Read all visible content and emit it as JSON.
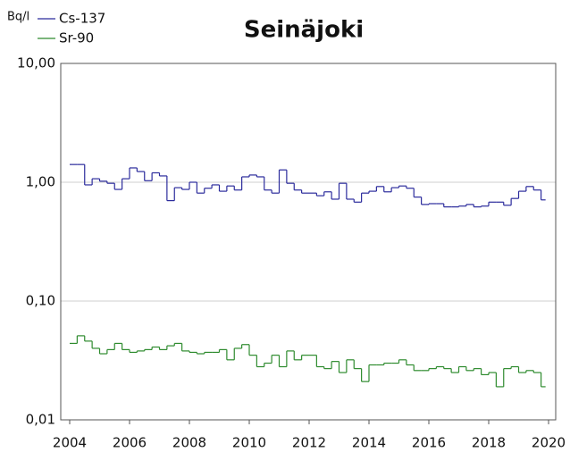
{
  "chart_data": {
    "type": "step",
    "title": "Seinäjoki",
    "y_label": "Bq/l",
    "log_y": true,
    "grid": true,
    "legend": "top-left",
    "xlim": [
      2004,
      2020
    ],
    "xticks": [
      2004,
      2006,
      2008,
      2010,
      2012,
      2014,
      2016,
      2018,
      2020
    ],
    "ylim": [
      0.01,
      10
    ],
    "yticks": [
      {
        "value": 0.01,
        "label": "0,01"
      },
      {
        "value": 0.1,
        "label": "0,10"
      },
      {
        "value": 1,
        "label": "1,00"
      },
      {
        "value": 10,
        "label": "10,00"
      }
    ],
    "x": [
      2004,
      2004.25,
      2004.5,
      2004.75,
      2005,
      2005.25,
      2005.5,
      2005.75,
      2006,
      2006.25,
      2006.5,
      2006.75,
      2007,
      2007.25,
      2007.5,
      2007.75,
      2008,
      2008.25,
      2008.5,
      2008.75,
      2009,
      2009.25,
      2009.5,
      2009.75,
      2010,
      2010.25,
      2010.5,
      2010.75,
      2011,
      2011.25,
      2011.5,
      2011.75,
      2012,
      2012.25,
      2012.5,
      2012.75,
      2013,
      2013.25,
      2013.5,
      2013.75,
      2014,
      2014.25,
      2014.5,
      2014.75,
      2015,
      2015.25,
      2015.5,
      2015.75,
      2016,
      2016.25,
      2016.5,
      2016.75,
      2017,
      2017.25,
      2017.5,
      2017.75,
      2018,
      2018.25,
      2018.5,
      2018.75,
      2019,
      2019.25,
      2019.5,
      2019.75
    ],
    "series": [
      {
        "name": "Cs-137",
        "color": "#2b2b9c",
        "values": [
          1.41,
          1.41,
          0.95,
          1.07,
          1.02,
          0.98,
          0.87,
          1.07,
          1.32,
          1.23,
          1.03,
          1.2,
          1.13,
          0.7,
          0.9,
          0.87,
          1.0,
          0.81,
          0.89,
          0.95,
          0.84,
          0.93,
          0.86,
          1.11,
          1.15,
          1.11,
          0.86,
          0.81,
          1.27,
          0.98,
          0.86,
          0.81,
          0.81,
          0.77,
          0.83,
          0.72,
          0.98,
          0.72,
          0.68,
          0.81,
          0.84,
          0.92,
          0.83,
          0.9,
          0.93,
          0.89,
          0.75,
          0.65,
          0.66,
          0.66,
          0.62,
          0.62,
          0.63,
          0.65,
          0.62,
          0.63,
          0.68,
          0.68,
          0.64,
          0.73,
          0.84,
          0.92,
          0.86,
          0.71
        ]
      },
      {
        "name": "Sr-90",
        "color": "#2e8b2e",
        "values": [
          0.044,
          0.051,
          0.046,
          0.04,
          0.036,
          0.039,
          0.044,
          0.039,
          0.037,
          0.038,
          0.039,
          0.041,
          0.039,
          0.042,
          0.044,
          0.038,
          0.037,
          0.036,
          0.037,
          0.037,
          0.039,
          0.032,
          0.04,
          0.043,
          0.035,
          0.028,
          0.03,
          0.035,
          0.028,
          0.038,
          0.032,
          0.035,
          0.035,
          0.028,
          0.027,
          0.031,
          0.025,
          0.032,
          0.027,
          0.021,
          0.029,
          0.029,
          0.03,
          0.03,
          0.032,
          0.029,
          0.026,
          0.026,
          0.027,
          0.028,
          0.027,
          0.025,
          0.028,
          0.026,
          0.027,
          0.024,
          0.025,
          0.019,
          0.027,
          0.028,
          0.025,
          0.026,
          0.025,
          0.019
        ]
      }
    ]
  }
}
